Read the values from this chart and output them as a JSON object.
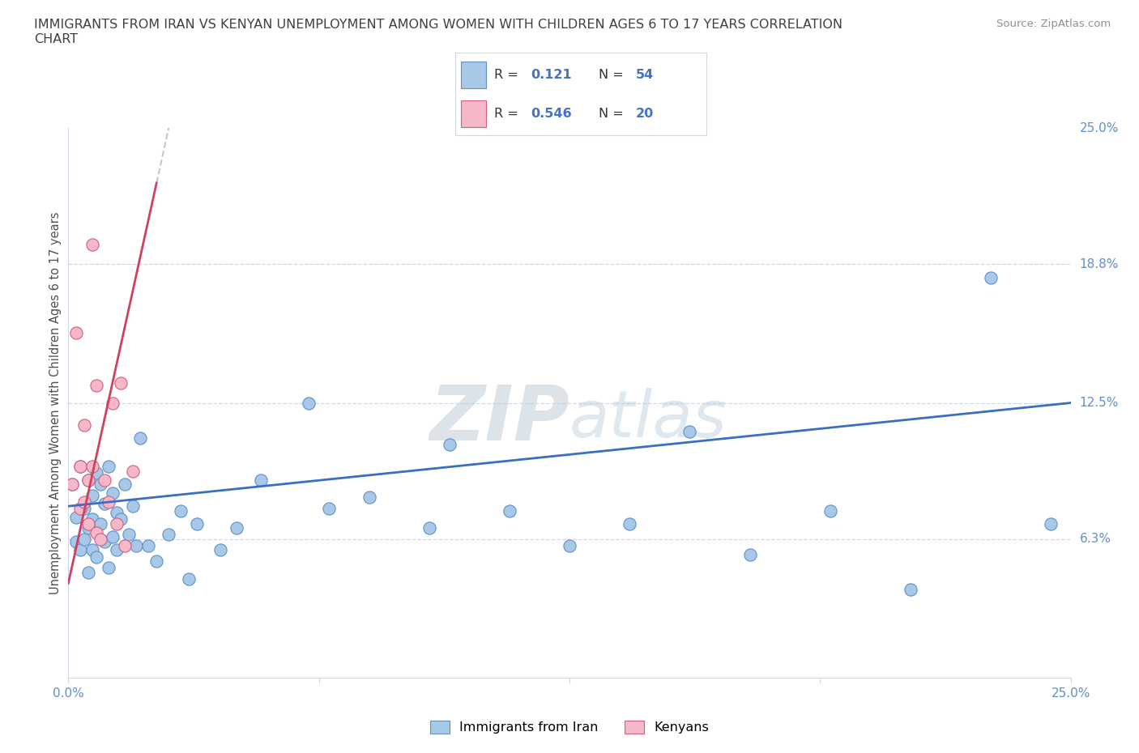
{
  "title": "IMMIGRANTS FROM IRAN VS KENYAN UNEMPLOYMENT AMONG WOMEN WITH CHILDREN AGES 6 TO 17 YEARS CORRELATION\nCHART",
  "source_text": "Source: ZipAtlas.com",
  "ylabel": "Unemployment Among Women with Children Ages 6 to 17 years",
  "xlim": [
    0.0,
    0.25
  ],
  "ylim": [
    0.0,
    0.25
  ],
  "legend_R1": "0.121",
  "legend_N1": "54",
  "legend_R2": "0.546",
  "legend_N2": "20",
  "series1_label": "Immigrants from Iran",
  "series2_label": "Kenyans",
  "series1_color": "#a8c8e8",
  "series2_color": "#f4b8c8",
  "series1_edge": "#6090c8",
  "series2_edge": "#d06080",
  "trendline1_color": "#3a6fc4",
  "trendline2_color": "#d04060",
  "trendline_dashed_color": "#b0b8c8",
  "watermark_zip_color": "#c8d4e4",
  "watermark_atlas_color": "#b0c0d8",
  "grid_color": "#d0d8e8",
  "axis_color": "#d0d8e8",
  "tick_color": "#6090c8",
  "title_color": "#404040",
  "source_color": "#909090",
  "background_color": "#ffffff",
  "iran_x": [
    0.001,
    0.002,
    0.002,
    0.003,
    0.003,
    0.004,
    0.004,
    0.005,
    0.005,
    0.005,
    0.006,
    0.006,
    0.006,
    0.007,
    0.007,
    0.008,
    0.008,
    0.009,
    0.009,
    0.01,
    0.01,
    0.011,
    0.011,
    0.012,
    0.012,
    0.013,
    0.014,
    0.015,
    0.016,
    0.017,
    0.018,
    0.02,
    0.022,
    0.025,
    0.028,
    0.03,
    0.032,
    0.038,
    0.042,
    0.048,
    0.06,
    0.065,
    0.075,
    0.09,
    0.095,
    0.11,
    0.125,
    0.14,
    0.155,
    0.17,
    0.19,
    0.21,
    0.23,
    0.245
  ],
  "iran_y": [
    0.088,
    0.073,
    0.062,
    0.096,
    0.058,
    0.077,
    0.063,
    0.09,
    0.068,
    0.048,
    0.083,
    0.072,
    0.058,
    0.093,
    0.055,
    0.088,
    0.07,
    0.079,
    0.062,
    0.096,
    0.05,
    0.084,
    0.064,
    0.075,
    0.058,
    0.072,
    0.088,
    0.065,
    0.078,
    0.06,
    0.109,
    0.06,
    0.053,
    0.065,
    0.076,
    0.045,
    0.07,
    0.058,
    0.068,
    0.09,
    0.125,
    0.077,
    0.082,
    0.068,
    0.106,
    0.076,
    0.06,
    0.07,
    0.112,
    0.056,
    0.076,
    0.04,
    0.182,
    0.07
  ],
  "kenya_x": [
    0.001,
    0.002,
    0.003,
    0.003,
    0.004,
    0.004,
    0.005,
    0.005,
    0.006,
    0.006,
    0.007,
    0.007,
    0.008,
    0.009,
    0.01,
    0.011,
    0.012,
    0.013,
    0.014,
    0.016
  ],
  "kenya_y": [
    0.088,
    0.157,
    0.077,
    0.096,
    0.08,
    0.115,
    0.07,
    0.09,
    0.197,
    0.096,
    0.066,
    0.133,
    0.063,
    0.09,
    0.08,
    0.125,
    0.07,
    0.134,
    0.06,
    0.094
  ],
  "trendline1_x": [
    0.0,
    0.25
  ],
  "trendline1_y_start": 0.078,
  "trendline1_y_end": 0.125,
  "trendline2_x_start": 0.0,
  "trendline2_x_end": 0.022,
  "trendline2_y_start": 0.043,
  "trendline2_y_end": 0.225
}
